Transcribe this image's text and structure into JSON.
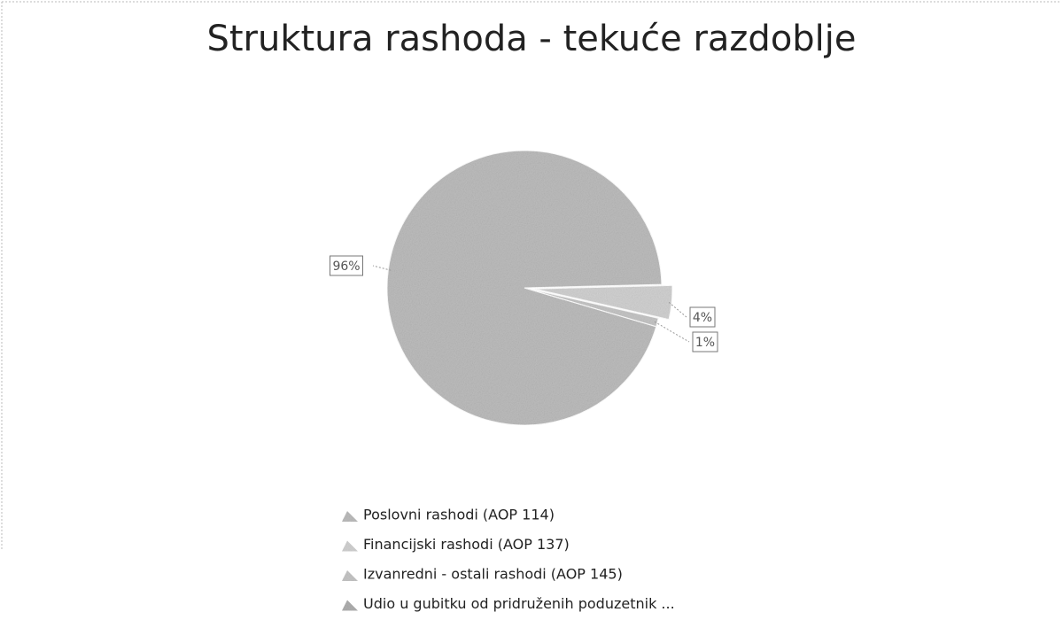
{
  "chart_data": {
    "type": "pie",
    "title": "Struktura rashoda - tekuće razdoblje",
    "categories": [
      "Poslovni rashodi (AOP 114)",
      "Financijski rashodi (AOP 137)",
      "Izvanredni - ostali rashodi (AOP 145)",
      "Udio u gubitku od pridruženih poduzetnik ..."
    ],
    "values": [
      96,
      4,
      1,
      0
    ],
    "value_labels": [
      "96%",
      "4%",
      "1%",
      null
    ],
    "colors": [
      "#bdbdbd",
      "#d2d2d2",
      "#c6c6c6",
      "#b0b0b0"
    ],
    "legend": "bottom"
  }
}
